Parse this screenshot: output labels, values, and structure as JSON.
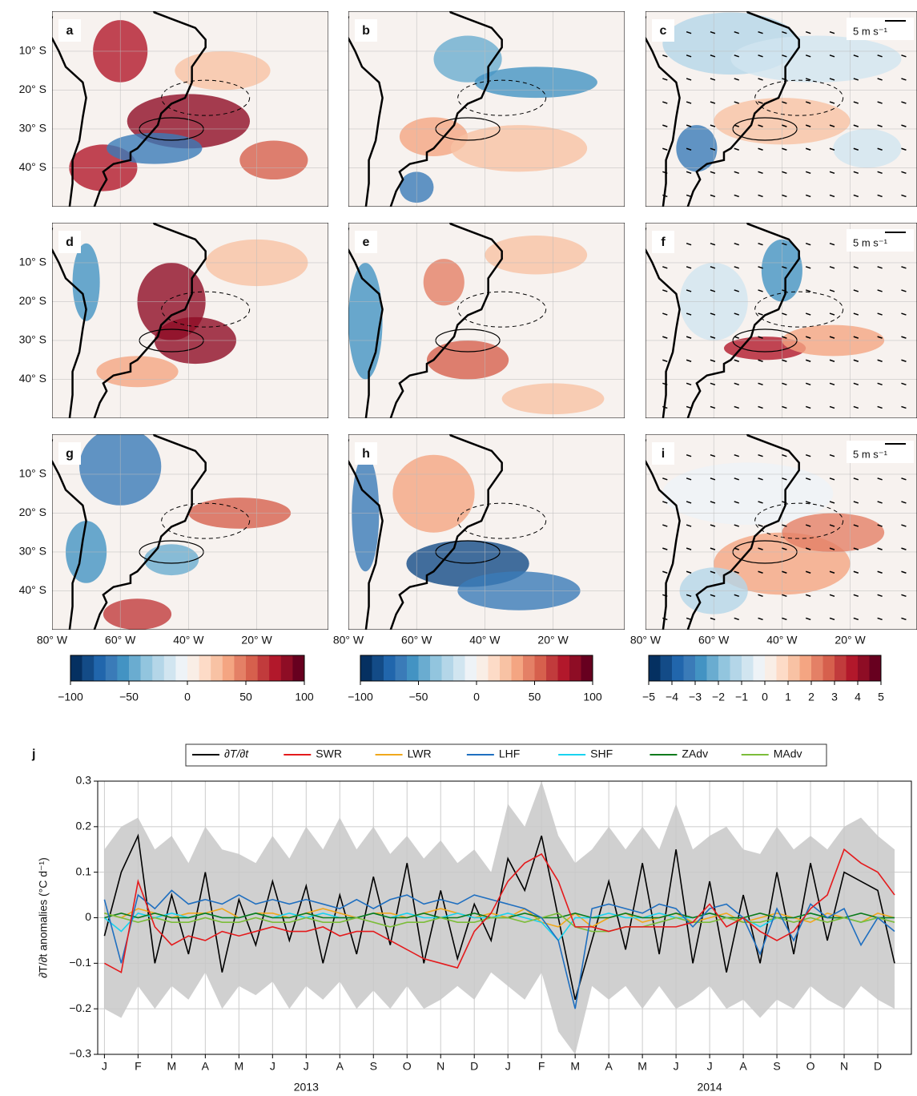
{
  "maps": {
    "panels": [
      {
        "label": "a"
      },
      {
        "label": "b"
      },
      {
        "label": "c",
        "scale_label": "5 m s⁻¹"
      },
      {
        "label": "d"
      },
      {
        "label": "e"
      },
      {
        "label": "f",
        "scale_label": "5 m s⁻¹"
      },
      {
        "label": "g"
      },
      {
        "label": "h"
      },
      {
        "label": "i",
        "scale_label": "5 m s⁻¹"
      }
    ],
    "lat_ticks": [
      "10° S",
      "20° S",
      "30° S",
      "40° S"
    ],
    "lon_ticks": [
      "80° W",
      "60° W",
      "40° W",
      "20° W"
    ],
    "colormap": [
      "#053061",
      "#134b87",
      "#2166ac",
      "#3a7bb8",
      "#4393c3",
      "#6aacd0",
      "#92c5de",
      "#b4d6e8",
      "#d1e5f0",
      "#eef3f7",
      "#f9eee6",
      "#fddbc7",
      "#f8c2a4",
      "#f4a582",
      "#e48066",
      "#d6604d",
      "#c13b3c",
      "#b2182b",
      "#8e0d25",
      "#67001f"
    ],
    "colorbars": [
      {
        "lim": [
          -100,
          100
        ],
        "ticks": [
          {
            "value": -100,
            "label": "−100"
          },
          {
            "value": -50,
            "label": "−50"
          },
          0,
          50,
          100
        ]
      },
      {
        "lim": [
          -100,
          100
        ],
        "ticks": [
          {
            "value": -100,
            "label": "−100"
          },
          {
            "value": -50,
            "label": "−50"
          },
          0,
          50,
          100
        ]
      },
      {
        "lim": [
          -5,
          5
        ],
        "ticks": [
          {
            "value": -5,
            "label": "−5"
          },
          {
            "value": -4,
            "label": "−4"
          },
          {
            "value": -3,
            "label": "−3"
          },
          {
            "value": -2,
            "label": "−2"
          },
          {
            "value": -1,
            "label": "−1"
          },
          0,
          1,
          2,
          3,
          4,
          5
        ]
      }
    ]
  },
  "chart_data": {
    "type": "line",
    "panel_label": "j",
    "ylabel": "∂T/∂t anomalies (°C d⁻¹)",
    "x": [
      0,
      0.5,
      1,
      1.5,
      2,
      2.5,
      3,
      3.5,
      4,
      4.5,
      5,
      5.5,
      6,
      6.5,
      7,
      7.5,
      8,
      8.5,
      9,
      9.5,
      10,
      10.5,
      11,
      11.5,
      12,
      12.5,
      13,
      13.5,
      14,
      14.5,
      15,
      15.5,
      16,
      16.5,
      17,
      17.5,
      18,
      18.5,
      19,
      19.5,
      20,
      20.5,
      21,
      21.5,
      22,
      22.5,
      23,
      23.5
    ],
    "xlim": [
      -0.2,
      24
    ],
    "xticks": [
      {
        "value": 0,
        "label": "J"
      },
      {
        "value": 1,
        "label": "F"
      },
      {
        "value": 2,
        "label": "M"
      },
      {
        "value": 3,
        "label": "A"
      },
      {
        "value": 4,
        "label": "M"
      },
      {
        "value": 5,
        "label": "J"
      },
      {
        "value": 6,
        "label": "J"
      },
      {
        "value": 7,
        "label": "A"
      },
      {
        "value": 8,
        "label": "S"
      },
      {
        "value": 9,
        "label": "O"
      },
      {
        "value": 10,
        "label": "N"
      },
      {
        "value": 11,
        "label": "D"
      },
      {
        "value": 12,
        "label": "J"
      },
      {
        "value": 13,
        "label": "F"
      },
      {
        "value": 14,
        "label": "M"
      },
      {
        "value": 15,
        "label": "A"
      },
      {
        "value": 16,
        "label": "M"
      },
      {
        "value": 17,
        "label": "J"
      },
      {
        "value": 18,
        "label": "J"
      },
      {
        "value": 19,
        "label": "A"
      },
      {
        "value": 20,
        "label": "S"
      },
      {
        "value": 21,
        "label": "O"
      },
      {
        "value": 22,
        "label": "N"
      },
      {
        "value": 23,
        "label": "D"
      }
    ],
    "year_labels": [
      "2013",
      "2014"
    ],
    "ylim": [
      -0.3,
      0.3
    ],
    "yticks": [
      {
        "value": -0.3,
        "label": "−0.3"
      },
      {
        "value": -0.2,
        "label": "−0.2"
      },
      {
        "value": -0.1,
        "label": "−0.1"
      },
      0,
      0.1,
      0.2,
      0.3
    ],
    "grid": true,
    "band": {
      "color": "#c8c8c8",
      "upper": [
        0.15,
        0.2,
        0.22,
        0.15,
        0.18,
        0.12,
        0.2,
        0.15,
        0.14,
        0.12,
        0.18,
        0.13,
        0.2,
        0.15,
        0.22,
        0.15,
        0.2,
        0.14,
        0.18,
        0.13,
        0.17,
        0.12,
        0.15,
        0.1,
        0.25,
        0.2,
        0.3,
        0.18,
        0.12,
        0.15,
        0.2,
        0.15,
        0.2,
        0.15,
        0.25,
        0.15,
        0.18,
        0.2,
        0.15,
        0.14,
        0.2,
        0.15,
        0.18,
        0.15,
        0.2,
        0.22,
        0.18,
        0.15
      ],
      "lower": [
        -0.2,
        -0.22,
        -0.15,
        -0.2,
        -0.15,
        -0.18,
        -0.12,
        -0.2,
        -0.15,
        -0.17,
        -0.14,
        -0.2,
        -0.15,
        -0.18,
        -0.14,
        -0.2,
        -0.16,
        -0.2,
        -0.15,
        -0.2,
        -0.18,
        -0.15,
        -0.18,
        -0.12,
        -0.15,
        -0.18,
        -0.12,
        -0.25,
        -0.3,
        -0.15,
        -0.18,
        -0.15,
        -0.2,
        -0.15,
        -0.2,
        -0.18,
        -0.15,
        -0.2,
        -0.18,
        -0.22,
        -0.18,
        -0.2,
        -0.15,
        -0.18,
        -0.2,
        -0.15,
        -0.18,
        -0.2
      ]
    },
    "series": [
      {
        "name": "∂T/∂t",
        "color": "#000000",
        "values": [
          -0.04,
          0.1,
          0.18,
          -0.1,
          0.05,
          -0.08,
          0.1,
          -0.12,
          0.04,
          -0.06,
          0.08,
          -0.05,
          0.07,
          -0.1,
          0.05,
          -0.08,
          0.09,
          -0.06,
          0.12,
          -0.1,
          0.06,
          -0.09,
          0.03,
          -0.05,
          0.13,
          0.06,
          0.18,
          0.0,
          -0.18,
          -0.05,
          0.08,
          -0.07,
          0.12,
          -0.08,
          0.15,
          -0.1,
          0.08,
          -0.12,
          0.05,
          -0.1,
          0.1,
          -0.08,
          0.12,
          -0.05,
          0.1,
          0.08,
          0.06,
          -0.1
        ]
      },
      {
        "name": "SWR",
        "color": "#e41a1c",
        "values": [
          -0.1,
          -0.12,
          0.08,
          -0.02,
          -0.06,
          -0.04,
          -0.05,
          -0.03,
          -0.04,
          -0.03,
          -0.02,
          -0.03,
          -0.03,
          -0.02,
          -0.04,
          -0.03,
          -0.03,
          -0.05,
          -0.07,
          -0.09,
          -0.1,
          -0.11,
          -0.03,
          0.01,
          0.08,
          0.12,
          0.14,
          0.08,
          -0.02,
          -0.02,
          -0.03,
          -0.02,
          -0.02,
          -0.02,
          -0.02,
          -0.01,
          0.03,
          -0.02,
          0.0,
          -0.03,
          -0.05,
          -0.03,
          0.02,
          0.05,
          0.15,
          0.12,
          0.1,
          0.05
        ]
      },
      {
        "name": "LWR",
        "color": "#f0a81c",
        "values": [
          0.01,
          0.0,
          0.02,
          0.01,
          0.0,
          0.01,
          0.01,
          0.02,
          0.0,
          0.01,
          0.01,
          0.0,
          0.01,
          0.02,
          0.01,
          0.0,
          0.01,
          0.01,
          0.0,
          0.01,
          0.02,
          0.01,
          0.0,
          0.01,
          0.0,
          0.02,
          -0.01,
          -0.02,
          0.01,
          -0.02,
          0.0,
          0.01,
          -0.01,
          0.0,
          0.01,
          -0.01,
          0.0,
          0.01,
          -0.01,
          0.0,
          0.01,
          0.0,
          -0.01,
          0.01,
          0.0,
          -0.01,
          0.01,
          0.0
        ]
      },
      {
        "name": "LHF",
        "color": "#1f6fc0",
        "values": [
          0.04,
          -0.1,
          0.05,
          0.02,
          0.06,
          0.03,
          0.04,
          0.03,
          0.05,
          0.03,
          0.04,
          0.03,
          0.04,
          0.03,
          0.02,
          0.04,
          0.02,
          0.04,
          0.05,
          0.03,
          0.04,
          0.03,
          0.05,
          0.04,
          0.03,
          0.02,
          0.0,
          -0.05,
          -0.2,
          0.02,
          0.03,
          0.02,
          0.01,
          0.03,
          0.02,
          -0.02,
          0.02,
          0.03,
          0.0,
          -0.08,
          0.02,
          -0.05,
          0.03,
          0.0,
          0.02,
          -0.06,
          0.0,
          -0.03
        ]
      },
      {
        "name": "SHF",
        "color": "#19d3f0",
        "values": [
          0.0,
          -0.03,
          0.01,
          0.0,
          0.01,
          0.0,
          0.01,
          0.0,
          0.0,
          0.01,
          0.0,
          0.01,
          0.0,
          0.01,
          0.0,
          0.0,
          0.01,
          0.0,
          0.01,
          0.0,
          0.0,
          0.01,
          0.0,
          0.0,
          0.01,
          0.0,
          -0.01,
          -0.05,
          0.0,
          0.0,
          0.01,
          0.0,
          0.0,
          0.01,
          0.0,
          0.0,
          0.01,
          0.0,
          0.0,
          -0.02,
          0.0,
          0.0,
          0.01,
          0.0,
          0.0,
          -0.01,
          0.0,
          0.0
        ]
      },
      {
        "name": "ZAdv",
        "color": "#0b7a1c",
        "values": [
          0.0,
          0.01,
          0.0,
          0.01,
          0.0,
          0.0,
          0.01,
          0.0,
          0.0,
          0.01,
          0.0,
          0.0,
          0.01,
          0.0,
          0.0,
          0.0,
          0.01,
          0.0,
          0.0,
          0.01,
          0.0,
          0.0,
          0.01,
          0.0,
          0.0,
          0.01,
          0.0,
          0.0,
          0.01,
          0.0,
          0.0,
          0.01,
          0.0,
          0.0,
          0.01,
          0.0,
          0.01,
          0.0,
          0.0,
          0.01,
          0.0,
          0.0,
          0.01,
          0.0,
          0.0,
          0.01,
          0.0,
          0.0
        ]
      },
      {
        "name": "MAdv",
        "color": "#7cbd3a",
        "values": [
          0.01,
          0.0,
          -0.01,
          0.0,
          -0.01,
          -0.01,
          0.0,
          -0.01,
          -0.01,
          0.0,
          -0.01,
          -0.01,
          0.0,
          -0.01,
          -0.01,
          0.0,
          -0.01,
          -0.02,
          -0.01,
          -0.01,
          0.0,
          -0.01,
          -0.01,
          0.0,
          0.0,
          -0.01,
          0.0,
          0.01,
          -0.02,
          -0.03,
          -0.03,
          -0.02,
          -0.02,
          -0.01,
          0.0,
          -0.01,
          -0.01,
          0.0,
          -0.01,
          -0.01,
          0.0,
          -0.01,
          0.0,
          -0.01,
          0.0,
          -0.01,
          0.0,
          -0.01
        ]
      }
    ]
  }
}
